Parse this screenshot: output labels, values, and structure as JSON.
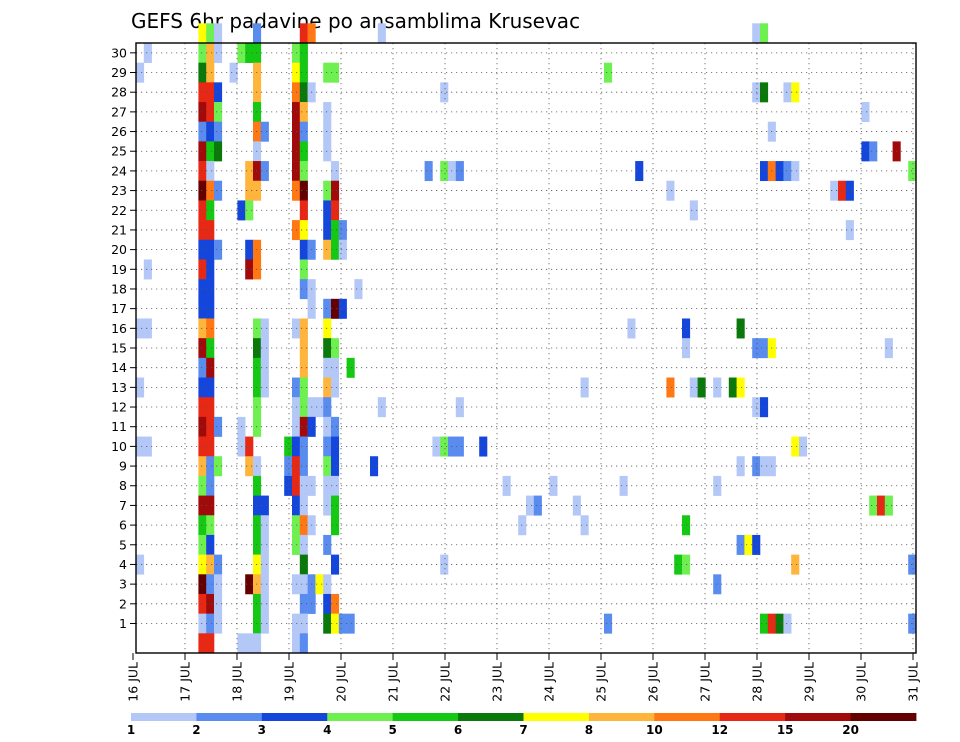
{
  "chart_data": {
    "type": "heatmap",
    "title": "GEFS 6hr padavine po ansamblima Krusevac",
    "x_tick_labels": [
      "16 JUL",
      "17 JUL",
      "18 JUL",
      "19 JUL",
      "20 JUL",
      "21 JUL",
      "22 JUL",
      "23 JUL",
      "24 JUL",
      "25 JUL",
      "26 JUL",
      "27 JUL",
      "28 JUL",
      "29 JUL",
      "30 JUL",
      "31 JUL"
    ],
    "y_tick_labels": [
      "1",
      "2",
      "3",
      "4",
      "5",
      "6",
      "7",
      "8",
      "9",
      "10",
      "11",
      "12",
      "13",
      "14",
      "15",
      "16",
      "17",
      "18",
      "19",
      "20",
      "21",
      "22",
      "23",
      "24",
      "25",
      "26",
      "27",
      "28",
      "29",
      "30"
    ],
    "xlim": [
      0,
      60
    ],
    "ylim": [
      0,
      30
    ],
    "colorbar": {
      "levels": [
        "1",
        "2",
        "3",
        "4",
        "5",
        "6",
        "7",
        "8",
        "10",
        "12",
        "15",
        "20"
      ],
      "colors": [
        "#b4c8f8",
        "#5a8cf0",
        "#1446dc",
        "#6ef050",
        "#14c814",
        "#0a780a",
        "#ffff00",
        "#ffb43c",
        "#ff7814",
        "#e62814",
        "#a00a0a",
        "#640000"
      ]
    },
    "cells": [
      [
        8,
        30,
        7
      ],
      [
        9,
        30,
        4
      ],
      [
        10,
        30,
        1
      ],
      [
        15,
        30,
        2
      ],
      [
        21,
        30,
        10
      ],
      [
        22,
        30,
        9
      ],
      [
        31,
        30,
        1
      ],
      [
        79,
        30,
        1
      ],
      [
        80,
        30,
        4
      ],
      [
        1,
        29,
        1
      ],
      [
        8,
        29,
        4
      ],
      [
        9,
        29,
        8
      ],
      [
        10,
        29,
        1
      ],
      [
        13,
        29,
        4
      ],
      [
        14,
        29,
        5
      ],
      [
        15,
        29,
        5
      ],
      [
        20,
        29,
        4
      ],
      [
        21,
        29,
        5
      ],
      [
        0,
        28,
        1
      ],
      [
        8,
        28,
        6
      ],
      [
        9,
        28,
        8
      ],
      [
        12,
        28,
        1
      ],
      [
        15,
        28,
        8
      ],
      [
        20,
        28,
        7
      ],
      [
        21,
        28,
        5
      ],
      [
        24,
        28,
        4
      ],
      [
        25,
        28,
        4
      ],
      [
        60,
        28,
        4
      ],
      [
        8,
        27,
        10
      ],
      [
        9,
        27,
        10
      ],
      [
        10,
        27,
        3
      ],
      [
        15,
        27,
        8
      ],
      [
        20,
        27,
        9
      ],
      [
        21,
        27,
        6
      ],
      [
        22,
        27,
        1
      ],
      [
        39,
        27,
        1
      ],
      [
        79,
        27,
        1
      ],
      [
        80,
        27,
        6
      ],
      [
        83,
        27,
        1
      ],
      [
        84,
        27,
        7
      ],
      [
        8,
        26,
        11
      ],
      [
        9,
        26,
        10
      ],
      [
        10,
        26,
        4
      ],
      [
        15,
        26,
        5
      ],
      [
        20,
        26,
        11
      ],
      [
        21,
        26,
        8
      ],
      [
        24,
        26,
        1
      ],
      [
        93,
        26,
        1
      ],
      [
        8,
        25,
        2
      ],
      [
        9,
        25,
        3
      ],
      [
        10,
        25,
        2
      ],
      [
        15,
        25,
        9
      ],
      [
        16,
        25,
        2
      ],
      [
        20,
        25,
        11
      ],
      [
        21,
        25,
        2
      ],
      [
        24,
        25,
        1
      ],
      [
        81,
        25,
        1
      ],
      [
        8,
        24,
        11
      ],
      [
        9,
        24,
        5
      ],
      [
        10,
        24,
        6
      ],
      [
        15,
        24,
        1
      ],
      [
        20,
        24,
        11
      ],
      [
        21,
        24,
        5
      ],
      [
        24,
        24,
        1
      ],
      [
        93,
        24,
        3
      ],
      [
        94,
        24,
        2
      ],
      [
        97,
        24,
        11
      ],
      [
        8,
        23,
        10
      ],
      [
        9,
        23,
        1
      ],
      [
        14,
        23,
        8
      ],
      [
        15,
        23,
        11
      ],
      [
        16,
        23,
        2
      ],
      [
        20,
        23,
        11
      ],
      [
        21,
        23,
        4
      ],
      [
        25,
        23,
        1
      ],
      [
        37,
        23,
        2
      ],
      [
        39,
        23,
        4
      ],
      [
        40,
        23,
        1
      ],
      [
        41,
        23,
        2
      ],
      [
        64,
        23,
        3
      ],
      [
        80,
        23,
        3
      ],
      [
        81,
        23,
        9
      ],
      [
        82,
        23,
        3
      ],
      [
        83,
        23,
        2
      ],
      [
        84,
        23,
        1
      ],
      [
        99,
        23,
        4
      ],
      [
        8,
        22,
        12
      ],
      [
        9,
        22,
        9
      ],
      [
        10,
        22,
        2
      ],
      [
        14,
        22,
        8
      ],
      [
        15,
        22,
        8
      ],
      [
        20,
        22,
        9
      ],
      [
        21,
        22,
        12
      ],
      [
        24,
        22,
        4
      ],
      [
        25,
        22,
        11
      ],
      [
        68,
        22,
        1
      ],
      [
        89,
        22,
        1
      ],
      [
        90,
        22,
        10
      ],
      [
        91,
        22,
        3
      ],
      [
        8,
        21,
        10
      ],
      [
        9,
        21,
        5
      ],
      [
        13,
        21,
        3
      ],
      [
        14,
        21,
        4
      ],
      [
        21,
        21,
        10
      ],
      [
        24,
        21,
        3
      ],
      [
        25,
        21,
        10
      ],
      [
        71,
        21,
        1
      ],
      [
        8,
        20,
        10
      ],
      [
        9,
        20,
        10
      ],
      [
        20,
        20,
        9
      ],
      [
        21,
        20,
        7
      ],
      [
        24,
        20,
        3
      ],
      [
        25,
        20,
        5
      ],
      [
        26,
        20,
        2
      ],
      [
        91,
        20,
        1
      ],
      [
        8,
        19,
        3
      ],
      [
        9,
        19,
        3
      ],
      [
        10,
        19,
        2
      ],
      [
        14,
        19,
        3
      ],
      [
        15,
        19,
        9
      ],
      [
        21,
        19,
        3
      ],
      [
        22,
        19,
        2
      ],
      [
        24,
        19,
        8
      ],
      [
        25,
        19,
        5
      ],
      [
        26,
        19,
        1
      ],
      [
        1,
        18,
        1
      ],
      [
        8,
        18,
        10
      ],
      [
        9,
        18,
        3
      ],
      [
        14,
        18,
        11
      ],
      [
        15,
        18,
        9
      ],
      [
        21,
        18,
        4
      ],
      [
        8,
        17,
        3
      ],
      [
        9,
        17,
        3
      ],
      [
        21,
        17,
        2
      ],
      [
        22,
        17,
        1
      ],
      [
        28,
        17,
        1
      ],
      [
        8,
        16,
        3
      ],
      [
        9,
        16,
        3
      ],
      [
        22,
        16,
        1
      ],
      [
        24,
        16,
        2
      ],
      [
        25,
        16,
        12
      ],
      [
        26,
        16,
        3
      ],
      [
        0,
        15,
        1
      ],
      [
        1,
        15,
        1
      ],
      [
        8,
        15,
        8
      ],
      [
        9,
        15,
        9
      ],
      [
        15,
        15,
        4
      ],
      [
        16,
        15,
        1
      ],
      [
        20,
        15,
        1
      ],
      [
        21,
        15,
        8
      ],
      [
        24,
        15,
        7
      ],
      [
        63,
        15,
        1
      ],
      [
        70,
        15,
        3
      ],
      [
        77,
        15,
        6
      ],
      [
        8,
        14,
        11
      ],
      [
        9,
        14,
        5
      ],
      [
        15,
        14,
        6
      ],
      [
        16,
        14,
        1
      ],
      [
        21,
        14,
        8
      ],
      [
        24,
        14,
        6
      ],
      [
        25,
        14,
        4
      ],
      [
        70,
        14,
        1
      ],
      [
        79,
        14,
        2
      ],
      [
        80,
        14,
        2
      ],
      [
        81,
        14,
        7
      ],
      [
        96,
        14,
        1
      ],
      [
        8,
        13,
        2
      ],
      [
        9,
        13,
        11
      ],
      [
        15,
        13,
        5
      ],
      [
        16,
        13,
        1
      ],
      [
        21,
        13,
        8
      ],
      [
        24,
        13,
        1
      ],
      [
        25,
        13,
        1
      ],
      [
        27,
        13,
        5
      ],
      [
        0,
        12,
        1
      ],
      [
        8,
        12,
        3
      ],
      [
        9,
        12,
        3
      ],
      [
        15,
        12,
        5
      ],
      [
        16,
        12,
        1
      ],
      [
        20,
        12,
        2
      ],
      [
        21,
        12,
        4
      ],
      [
        24,
        12,
        8
      ],
      [
        25,
        12,
        1
      ],
      [
        57,
        12,
        1
      ],
      [
        68,
        12,
        9
      ],
      [
        71,
        12,
        1
      ],
      [
        72,
        12,
        6
      ],
      [
        74,
        12,
        1
      ],
      [
        76,
        12,
        6
      ],
      [
        77,
        12,
        7
      ],
      [
        8,
        11,
        10
      ],
      [
        9,
        11,
        10
      ],
      [
        15,
        11,
        4
      ],
      [
        20,
        11,
        1
      ],
      [
        21,
        11,
        4
      ],
      [
        22,
        11,
        1
      ],
      [
        23,
        11,
        1
      ],
      [
        24,
        11,
        2
      ],
      [
        31,
        11,
        1
      ],
      [
        41,
        11,
        1
      ],
      [
        79,
        11,
        1
      ],
      [
        80,
        11,
        3
      ],
      [
        8,
        10,
        11
      ],
      [
        9,
        10,
        10
      ],
      [
        10,
        10,
        2
      ],
      [
        13,
        10,
        1
      ],
      [
        15,
        10,
        4
      ],
      [
        20,
        10,
        1
      ],
      [
        21,
        10,
        11
      ],
      [
        22,
        10,
        3
      ],
      [
        24,
        10,
        1
      ],
      [
        25,
        10,
        2
      ],
      [
        0,
        9,
        1
      ],
      [
        1,
        9,
        1
      ],
      [
        8,
        9,
        10
      ],
      [
        9,
        9,
        10
      ],
      [
        13,
        9,
        1
      ],
      [
        14,
        9,
        10
      ],
      [
        19,
        9,
        5
      ],
      [
        20,
        9,
        3
      ],
      [
        21,
        9,
        2
      ],
      [
        24,
        9,
        2
      ],
      [
        25,
        9,
        3
      ],
      [
        38,
        9,
        1
      ],
      [
        39,
        9,
        4
      ],
      [
        40,
        9,
        2
      ],
      [
        41,
        9,
        2
      ],
      [
        44,
        9,
        3
      ],
      [
        84,
        9,
        7
      ],
      [
        85,
        9,
        1
      ],
      [
        8,
        8,
        8
      ],
      [
        9,
        8,
        2
      ],
      [
        10,
        8,
        4
      ],
      [
        14,
        8,
        8
      ],
      [
        15,
        8,
        1
      ],
      [
        19,
        8,
        2
      ],
      [
        20,
        8,
        10
      ],
      [
        21,
        8,
        2
      ],
      [
        24,
        8,
        4
      ],
      [
        25,
        8,
        3
      ],
      [
        30,
        8,
        3
      ],
      [
        77,
        8,
        1
      ],
      [
        79,
        8,
        2
      ],
      [
        80,
        8,
        1
      ],
      [
        81,
        8,
        1
      ],
      [
        8,
        7,
        4
      ],
      [
        9,
        7,
        2
      ],
      [
        15,
        7,
        5
      ],
      [
        19,
        7,
        3
      ],
      [
        20,
        7,
        10
      ],
      [
        21,
        7,
        1
      ],
      [
        22,
        7,
        1
      ],
      [
        24,
        7,
        1
      ],
      [
        25,
        7,
        1
      ],
      [
        47,
        7,
        1
      ],
      [
        53,
        7,
        1
      ],
      [
        62,
        7,
        1
      ],
      [
        74,
        7,
        1
      ],
      [
        8,
        6,
        11
      ],
      [
        9,
        6,
        11
      ],
      [
        15,
        6,
        3
      ],
      [
        16,
        6,
        3
      ],
      [
        20,
        6,
        3
      ],
      [
        21,
        6,
        1
      ],
      [
        24,
        6,
        1
      ],
      [
        25,
        6,
        5
      ],
      [
        50,
        6,
        1
      ],
      [
        51,
        6,
        2
      ],
      [
        56,
        6,
        1
      ],
      [
        94,
        6,
        4
      ],
      [
        95,
        6,
        10
      ],
      [
        96,
        6,
        4
      ],
      [
        8,
        5,
        5
      ],
      [
        9,
        5,
        4
      ],
      [
        15,
        5,
        5
      ],
      [
        16,
        5,
        1
      ],
      [
        20,
        5,
        4
      ],
      [
        21,
        5,
        9
      ],
      [
        22,
        5,
        1
      ],
      [
        25,
        5,
        5
      ],
      [
        49,
        5,
        1
      ],
      [
        57,
        5,
        1
      ],
      [
        70,
        5,
        5
      ],
      [
        8,
        4,
        4
      ],
      [
        9,
        4,
        3
      ],
      [
        15,
        4,
        5
      ],
      [
        16,
        4,
        1
      ],
      [
        20,
        4,
        4
      ],
      [
        21,
        4,
        1
      ],
      [
        24,
        4,
        2
      ],
      [
        77,
        4,
        2
      ],
      [
        78,
        4,
        7
      ],
      [
        79,
        4,
        3
      ],
      [
        0,
        3,
        1
      ],
      [
        8,
        3,
        7
      ],
      [
        9,
        3,
        8
      ],
      [
        10,
        3,
        2
      ],
      [
        15,
        3,
        7
      ],
      [
        16,
        3,
        1
      ],
      [
        21,
        3,
        6
      ],
      [
        25,
        3,
        3
      ],
      [
        39,
        3,
        1
      ],
      [
        69,
        3,
        5
      ],
      [
        70,
        3,
        4
      ],
      [
        84,
        3,
        8
      ],
      [
        99,
        3,
        2
      ],
      [
        8,
        2,
        12
      ],
      [
        9,
        2,
        2
      ],
      [
        10,
        2,
        1
      ],
      [
        14,
        2,
        12
      ],
      [
        15,
        2,
        8
      ],
      [
        16,
        2,
        1
      ],
      [
        20,
        2,
        1
      ],
      [
        21,
        2,
        1
      ],
      [
        22,
        2,
        2
      ],
      [
        23,
        2,
        7
      ],
      [
        24,
        2,
        1
      ],
      [
        74,
        2,
        2
      ],
      [
        8,
        1,
        10
      ],
      [
        9,
        1,
        11
      ],
      [
        10,
        1,
        1
      ],
      [
        15,
        1,
        5
      ],
      [
        16,
        1,
        1
      ],
      [
        21,
        1,
        2
      ],
      [
        22,
        1,
        2
      ],
      [
        24,
        1,
        3
      ],
      [
        25,
        1,
        9
      ],
      [
        8,
        0,
        1
      ],
      [
        9,
        0,
        2
      ],
      [
        10,
        0,
        1
      ],
      [
        15,
        0,
        5
      ],
      [
        16,
        0,
        1
      ],
      [
        20,
        0,
        1
      ],
      [
        21,
        0,
        1
      ],
      [
        24,
        0,
        6
      ],
      [
        25,
        0,
        7
      ],
      [
        26,
        0,
        2
      ],
      [
        27,
        0,
        2
      ],
      [
        60,
        0,
        2
      ],
      [
        80,
        0,
        5
      ],
      [
        81,
        0,
        10
      ],
      [
        82,
        0,
        6
      ],
      [
        83,
        0,
        1
      ],
      [
        99,
        0,
        2
      ],
      [
        8,
        -1,
        10
      ],
      [
        9,
        -1,
        10
      ],
      [
        13,
        -1,
        1
      ],
      [
        14,
        -1,
        1
      ],
      [
        15,
        -1,
        1
      ],
      [
        20,
        -1,
        1
      ],
      [
        21,
        -1,
        2
      ]
    ]
  }
}
